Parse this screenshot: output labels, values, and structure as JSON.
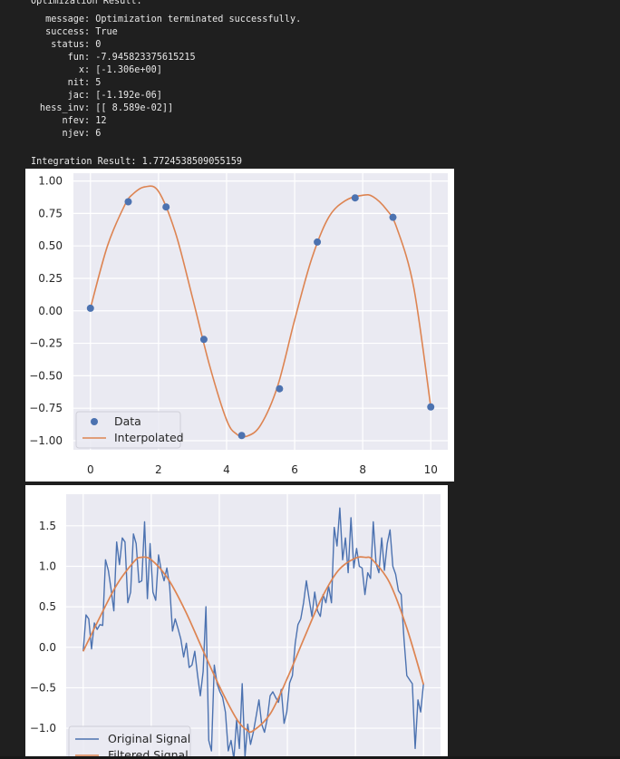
{
  "output": {
    "title": "Optimization Result:",
    "rows": [
      {
        "key": "message",
        "value": "Optimization terminated successfully."
      },
      {
        "key": "success",
        "value": "True"
      },
      {
        "key": "status",
        "value": "0"
      },
      {
        "key": "fun",
        "value": "-7.945823375615215"
      },
      {
        "key": "x",
        "value": "[-1.306e+00]"
      },
      {
        "key": "nit",
        "value": "5"
      },
      {
        "key": "jac",
        "value": "[-1.192e-06]"
      },
      {
        "key": "hess_inv",
        "value": "[[ 8.589e-02]]"
      },
      {
        "key": "nfev",
        "value": "12"
      },
      {
        "key": "njev",
        "value": "6"
      }
    ],
    "integration": "Integration Result: 1.7724538509055159"
  },
  "colors": {
    "blue": "#4c72b0",
    "orange": "#dd8452",
    "plot_bg": "#eaeaf2",
    "grid": "#ffffff"
  },
  "chart_data": [
    {
      "type": "scatter",
      "xlim": [
        -0.5,
        10.5
      ],
      "ylim": [
        -1.07,
        1.06
      ],
      "xticks": [
        0,
        2,
        4,
        6,
        8,
        10
      ],
      "xtick_labels": [
        "0",
        "2",
        "4",
        "6",
        "8",
        "10"
      ],
      "yticks": [
        1.0,
        0.75,
        0.5,
        0.25,
        0.0,
        -0.25,
        -0.5,
        -0.75,
        -1.0
      ],
      "ytick_labels": [
        "1.00",
        "0.75",
        "0.50",
        "0.25",
        "0.00",
        "−0.25",
        "−0.50",
        "−0.75",
        "−1.00"
      ],
      "grid": true,
      "legend": "lower-left",
      "series": [
        {
          "name": "Data",
          "type": "scatter",
          "color": "#4c72b0",
          "x": [
            0,
            1.1111,
            2.2222,
            3.3333,
            4.4444,
            5.5556,
            6.6667,
            7.7778,
            8.8889,
            10
          ],
          "y": [
            0.02,
            0.84,
            0.8,
            -0.22,
            -0.96,
            -0.6,
            0.53,
            0.87,
            0.72,
            -0.74
          ]
        },
        {
          "name": "Interpolated",
          "type": "line",
          "color": "#dd8452",
          "x": [
            0,
            0.5,
            1.0,
            1.25,
            1.6,
            2.0,
            2.5,
            3.0,
            3.5,
            4.0,
            4.3,
            4.6,
            5.0,
            5.5,
            6.0,
            6.5,
            7.0,
            7.5,
            8.0,
            8.3,
            8.7,
            9.0,
            9.5,
            10.0
          ],
          "y": [
            0.02,
            0.5,
            0.81,
            0.9,
            0.955,
            0.92,
            0.6,
            0.1,
            -0.42,
            -0.84,
            -0.95,
            -0.965,
            -0.88,
            -0.58,
            -0.07,
            0.4,
            0.72,
            0.85,
            0.89,
            0.88,
            0.78,
            0.64,
            0.18,
            -0.74
          ]
        }
      ]
    },
    {
      "type": "line",
      "xlim": [
        -0.5,
        10.5
      ],
      "ylim": [
        -1.38,
        1.89
      ],
      "yticks": [
        1.5,
        1.0,
        0.5,
        0.0,
        -0.5,
        -1.0
      ],
      "ytick_labels": [
        "1.5",
        "1.0",
        "0.5",
        "0.0",
        "−0.5",
        "−1.0"
      ],
      "xgrid": [
        0,
        2,
        4,
        6,
        8,
        10
      ],
      "grid": true,
      "legend": "lower-left",
      "series": [
        {
          "name": "Original Signal",
          "color": "#4c72b0",
          "x_start": 0,
          "x_end": 10,
          "values": [
            -0.05,
            0.4,
            0.35,
            -0.02,
            0.3,
            0.22,
            0.28,
            0.27,
            1.08,
            0.95,
            0.72,
            0.45,
            1.3,
            1.02,
            1.35,
            1.3,
            0.55,
            0.68,
            1.4,
            1.28,
            0.8,
            0.82,
            1.55,
            0.6,
            1.28,
            0.68,
            0.58,
            1.14,
            0.95,
            0.82,
            0.98,
            0.75,
            0.2,
            0.35,
            0.23,
            0.1,
            -0.12,
            0.05,
            -0.25,
            -0.22,
            -0.05,
            -0.35,
            -0.6,
            -0.3,
            0.5,
            -1.15,
            -1.28,
            -0.22,
            -0.45,
            -0.55,
            -0.62,
            -0.8,
            -1.28,
            -1.15,
            -1.38,
            -0.9,
            -1.25,
            -0.45,
            -1.35,
            -0.95,
            -1.2,
            -1.05,
            -0.85,
            -0.65,
            -0.95,
            -1.05,
            -0.88,
            -0.6,
            -0.55,
            -0.62,
            -0.68,
            -0.52,
            -0.94,
            -0.8,
            -0.44,
            -0.35,
            0.05,
            0.28,
            0.35,
            0.55,
            0.82,
            0.6,
            0.38,
            0.68,
            0.45,
            0.38,
            0.65,
            0.55,
            0.75,
            0.55,
            1.48,
            1.25,
            1.72,
            1.08,
            1.35,
            0.92,
            1.6,
            0.98,
            1.22,
            1.0,
            0.98,
            0.65,
            0.92,
            0.85,
            1.55,
            1.03,
            0.92,
            1.35,
            0.95,
            1.28,
            1.45,
            1.0,
            0.9,
            0.7,
            0.65,
            0.1,
            -0.35,
            -0.4,
            -0.45,
            -1.25,
            -0.65,
            -0.8,
            -0.45
          ]
        },
        {
          "name": "Filtered Signal",
          "color": "#dd8452",
          "x": [
            0,
            0.5,
            1.0,
            1.5,
            1.7,
            2.0,
            2.5,
            3.0,
            3.5,
            4.0,
            4.5,
            4.8,
            5.0,
            5.5,
            6.0,
            6.5,
            7.0,
            7.5,
            8.0,
            8.3,
            8.5,
            9.0,
            9.5,
            10.0
          ],
          "y": [
            -0.05,
            0.38,
            0.78,
            1.06,
            1.11,
            1.08,
            0.84,
            0.45,
            -0.02,
            -0.48,
            -0.88,
            -1.02,
            -1.03,
            -0.82,
            -0.38,
            0.12,
            0.6,
            0.95,
            1.1,
            1.11,
            1.08,
            0.8,
            0.25,
            -0.46
          ]
        }
      ]
    }
  ]
}
